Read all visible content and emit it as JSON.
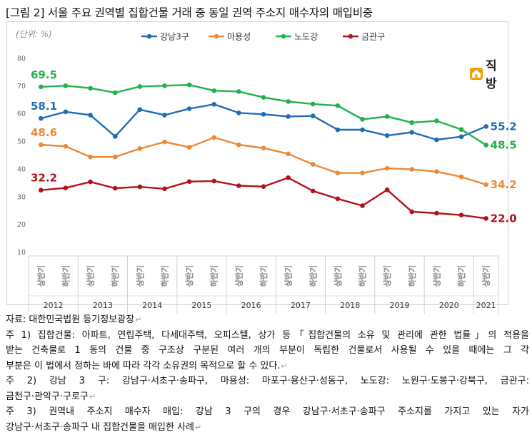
{
  "title": "[그림 2] 서울 주요 권역별 집합건물 거래 중 동일 권역 주소지 매수자의 매입비중",
  "logo": {
    "text": "직방",
    "icon": "house-icon",
    "color": "#f2a000"
  },
  "chart_data": {
    "type": "line",
    "unit_label": "(단위: %)",
    "ylim": [
      10,
      80
    ],
    "yticks": [
      10,
      20,
      30,
      40,
      50,
      60,
      70,
      80
    ],
    "grid": false,
    "legend_position": "top",
    "x": [
      "상반기",
      "하반기",
      "상반기",
      "하반기",
      "상반기",
      "하반기",
      "상반기",
      "하반기",
      "상반기",
      "하반기",
      "상반기",
      "하반기",
      "상반기",
      "하반기",
      "상반기",
      "하반기",
      "상반기",
      "하반기",
      "상반기"
    ],
    "years": [
      {
        "label": "2012",
        "span": 2
      },
      {
        "label": "2013",
        "span": 2
      },
      {
        "label": "2014",
        "span": 2
      },
      {
        "label": "2015",
        "span": 2
      },
      {
        "label": "2016",
        "span": 2
      },
      {
        "label": "2017",
        "span": 2
      },
      {
        "label": "2018",
        "span": 2
      },
      {
        "label": "2019",
        "span": 2
      },
      {
        "label": "2020",
        "span": 2
      },
      {
        "label": "2021",
        "span": 1
      }
    ],
    "series": [
      {
        "name": "강남3구",
        "color": "#1f6db5",
        "values": [
          58.1,
          60.5,
          59.3,
          51.6,
          61.3,
          59.3,
          61.6,
          63.2,
          60.1,
          59.6,
          58.8,
          59.0,
          54.0,
          54.0,
          51.9,
          53.1,
          50.4,
          51.5,
          55.2
        ],
        "start_label": "58.1",
        "end_label": "55.2"
      },
      {
        "name": "마용성",
        "color": "#ed8936",
        "values": [
          48.6,
          48.0,
          44.2,
          44.2,
          47.2,
          49.6,
          47.7,
          51.2,
          48.6,
          47.4,
          45.3,
          41.5,
          38.4,
          38.4,
          40.1,
          39.7,
          38.9,
          37.0,
          34.2
        ],
        "start_label": "48.6",
        "end_label": "34.2"
      },
      {
        "name": "노도강",
        "color": "#22b14c",
        "values": [
          69.5,
          69.9,
          69.0,
          67.4,
          69.6,
          69.9,
          70.2,
          68.1,
          67.8,
          65.7,
          64.2,
          63.3,
          62.7,
          57.8,
          58.8,
          56.6,
          57.2,
          54.1,
          48.5
        ],
        "start_label": "69.5",
        "end_label": "48.5"
      },
      {
        "name": "금관구",
        "color": "#b4121b",
        "values": [
          32.2,
          33.0,
          35.2,
          32.9,
          33.4,
          32.7,
          35.3,
          35.5,
          33.8,
          33.5,
          36.7,
          31.9,
          29.1,
          26.6,
          32.3,
          24.4,
          23.9,
          23.2,
          22.0
        ],
        "start_label": "32.2",
        "end_label": "22.0"
      }
    ]
  },
  "notes": {
    "source": "자료: 대한민국법원 등기정보광장",
    "note1_line1": "주 1) 집합건물: 아파트, 연립주택, 다세대주택, 오피스텔, 상가 등「집합건물의 소유 및 관리에 관한 법률」의 적용을",
    "note1_line2": "받는 건축물로 1 동의 건물 중 구조상 구분된 여러 개의 부분이 독립한 건물로서 사용될 수 있을 때에는 그 각",
    "note1_line3": "부분은 이 법에서 정하는 바에 따라 각각 소유권의 목적으로 할 수 있다.",
    "note2_line1": "주 2) 강남 3 구: 강남구·서초구·송파구, 마용성: 마포구·용산구·성동구, 노도강: 노원구·도봉구·강북구, 금관구:",
    "note2_line2": "금천구·관악구·구로구",
    "note3_line1": "주 3) 권역내 주소지 매수자 매입: 강남 3 구의 경우 강남구·서초구·송파구 주소지를 가지고 있는 자가",
    "note3_line2": "강남구·서초구·송파구 내 집합건물을 매입한 사례"
  }
}
